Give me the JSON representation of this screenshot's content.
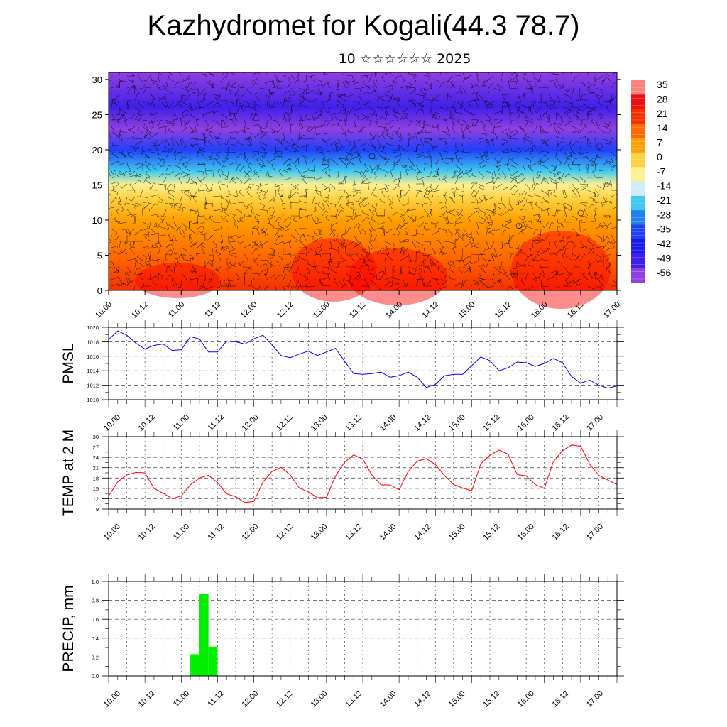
{
  "title": "Kazhydromet for Kogali(44.3 78.7)",
  "subtitle": "10 ☆☆☆☆☆☆ 2025",
  "time_ticks": [
    "10.00",
    "10.12",
    "11.00",
    "11.12",
    "12.00",
    "12.12",
    "13.00",
    "13.12",
    "14.00",
    "14.12",
    "15.00",
    "15.12",
    "16.00",
    "16.12",
    "17.00"
  ],
  "colors": {
    "pmsl": "#0000ff",
    "temp": "#ff0000",
    "precip": "#00ee00"
  },
  "chart_data": [
    {
      "type": "heatmap",
      "panel": "vertical-section",
      "title": "",
      "xlabel": "",
      "ylabel": "",
      "x_ticks": [
        "10.00",
        "10.12",
        "11.00",
        "11.12",
        "12.00",
        "12.12",
        "13.00",
        "13.12",
        "14.00",
        "14.12",
        "15.00",
        "15.12",
        "16.00",
        "16.12",
        "17.00"
      ],
      "ylim": [
        0,
        31
      ],
      "y_ticks": [
        0,
        5,
        10,
        15,
        20,
        25,
        30
      ],
      "overlay": "wind barbs",
      "colorbar_labels": [
        "35",
        "28",
        "21",
        "14",
        "7",
        "0",
        "-7",
        "-14",
        "-21",
        "-28",
        "-35",
        "-42",
        "-49",
        "-56"
      ],
      "colorbar_colors": [
        "#ff8080",
        "#ee1010",
        "#f33000",
        "#ff6a00",
        "#ffa000",
        "#ffd040",
        "#fff090",
        "#d0ecf8",
        "#40c8f0",
        "#2080f0",
        "#2040f8",
        "#1818e8",
        "#4020e8",
        "#9040e0"
      ],
      "temperature_by_height": [
        {
          "height": 0,
          "value": 21
        },
        {
          "height": 5,
          "value": 14
        },
        {
          "height": 10,
          "value": 7
        },
        {
          "height": 13,
          "value": 0
        },
        {
          "height": 15,
          "value": -7
        },
        {
          "height": 17,
          "value": -21
        },
        {
          "height": 20,
          "value": -35
        },
        {
          "height": 23,
          "value": -56
        },
        {
          "height": 26,
          "value": -49
        },
        {
          "height": 31,
          "value": -56
        }
      ]
    },
    {
      "type": "line",
      "ylabel": "PMSL",
      "ylim": [
        1010,
        1020
      ],
      "y_ticks": [
        "1010",
        "1012",
        "1014",
        "1016",
        "1018",
        "1020"
      ],
      "x_ticks": [
        "10.00",
        "10.12",
        "11.00",
        "11.12",
        "12.00",
        "12.12",
        "13.00",
        "13.12",
        "14.00",
        "14.12",
        "15.00",
        "15.12",
        "16.00",
        "16.12",
        "17.00"
      ],
      "x_hours": [
        0,
        3,
        6,
        9,
        12,
        15,
        18,
        21,
        24,
        27,
        30,
        33,
        36,
        39,
        42,
        45,
        48,
        51,
        54,
        57,
        60,
        63,
        66,
        69,
        72,
        75,
        78,
        81,
        84,
        87,
        90,
        93,
        96,
        99,
        102,
        105,
        108,
        111,
        114,
        117,
        120,
        123,
        126,
        129,
        132,
        135,
        138,
        141,
        144,
        147,
        150,
        153,
        156,
        159,
        162,
        165,
        168
      ],
      "series": [
        {
          "values": [
            1018.3,
            1019.5,
            1018.9,
            1017.8,
            1017.0,
            1017.5,
            1017.7,
            1016.8,
            1016.9,
            1018.7,
            1018.4,
            1016.6,
            1016.6,
            1018.1,
            1018.0,
            1017.7,
            1018.4,
            1018.9,
            1017.6,
            1016.1,
            1015.8,
            1016.3,
            1016.7,
            1016.1,
            1016.6,
            1017.1,
            1015.3,
            1013.6,
            1013.5,
            1013.6,
            1013.8,
            1013.1,
            1013.3,
            1013.8,
            1013.1,
            1011.7,
            1012.1,
            1013.3,
            1013.5,
            1013.5,
            1014.7,
            1015.9,
            1015.4,
            1014.0,
            1014.4,
            1015.2,
            1015.1,
            1014.6,
            1015.0,
            1015.7,
            1015.1,
            1013.2,
            1012.3,
            1012.7,
            1012.0,
            1011.6,
            1011.9
          ]
        }
      ]
    },
    {
      "type": "line",
      "ylabel": "TEMP at 2 M",
      "ylim": [
        9,
        30
      ],
      "y_ticks": [
        "9",
        "12",
        "15",
        "18",
        "21",
        "24",
        "27",
        "30"
      ],
      "x_ticks": [
        "10.00",
        "10.12",
        "11.00",
        "11.12",
        "12.00",
        "12.12",
        "13.00",
        "13.12",
        "14.00",
        "14.12",
        "15.00",
        "15.12",
        "16.00",
        "16.12",
        "17.00"
      ],
      "x_hours": [
        0,
        3,
        6,
        9,
        12,
        15,
        18,
        21,
        24,
        27,
        30,
        33,
        36,
        39,
        42,
        45,
        48,
        51,
        54,
        57,
        60,
        63,
        66,
        69,
        72,
        75,
        78,
        81,
        84,
        87,
        90,
        93,
        96,
        99,
        102,
        105,
        108,
        111,
        114,
        117,
        120,
        123,
        126,
        129,
        132,
        135,
        138,
        141,
        144,
        147,
        150,
        153,
        156,
        159,
        162,
        165,
        168
      ],
      "series": [
        {
          "values": [
            12.8,
            16.9,
            18.9,
            19.6,
            19.5,
            15.0,
            13.6,
            12.0,
            12.8,
            16.0,
            18.0,
            18.8,
            16.7,
            13.4,
            12.6,
            10.9,
            11.2,
            16.8,
            19.9,
            21.1,
            18.9,
            15.1,
            14.0,
            12.3,
            12.4,
            18.6,
            22.6,
            24.7,
            23.5,
            18.9,
            16.0,
            16.0,
            14.6,
            19.9,
            22.9,
            23.6,
            21.9,
            18.7,
            16.1,
            15.1,
            14.3,
            22.1,
            24.6,
            26.1,
            24.9,
            19.0,
            18.6,
            16.1,
            15.0,
            22.8,
            25.9,
            27.6,
            27.2,
            22.0,
            18.8,
            17.4,
            16.1
          ]
        }
      ]
    },
    {
      "type": "bar",
      "ylabel": "PRECIP, mm",
      "ylim": [
        0,
        1.0
      ],
      "y_ticks": [
        "0.0",
        "0.2",
        "0.4",
        "0.6",
        "0.8",
        "1.0"
      ],
      "x_ticks": [
        "10.00",
        "10.12",
        "11.00",
        "11.12",
        "12.00",
        "12.12",
        "13.00",
        "13.12",
        "14.00",
        "14.12",
        "15.00",
        "15.12",
        "16.00",
        "16.12",
        "17.00"
      ],
      "bars": [
        {
          "start_hour": 27,
          "end_hour": 30,
          "value": 0.23
        },
        {
          "start_hour": 30,
          "end_hour": 33,
          "value": 0.87
        },
        {
          "start_hour": 33,
          "end_hour": 36,
          "value": 0.31
        }
      ]
    }
  ]
}
